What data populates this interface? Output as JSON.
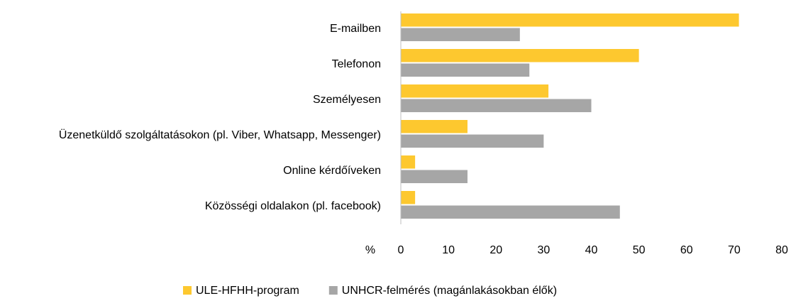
{
  "chart_data": {
    "type": "hbar",
    "categories": [
      "E-mailben",
      "Telefonon",
      "Személyesen",
      "Üzenetküldő szolgáltatásokon (pl. Viber, Whatsapp, Messenger)",
      "Online kérdőíveken",
      "Közösségi oldalakon (pl. facebook)"
    ],
    "series": [
      {
        "name": "ULE-HFHH-program",
        "color": "#fdc82f",
        "values": [
          71,
          50,
          31,
          14,
          3,
          3
        ]
      },
      {
        "name": "UNHCR-felmérés (magánlakásokban élők)",
        "color": "#a6a6a6",
        "values": [
          25,
          27,
          40,
          30,
          14,
          46
        ]
      }
    ],
    "xlabel": "%",
    "xlim": [
      0,
      80
    ],
    "xticks": [
      0,
      10,
      20,
      30,
      40,
      50,
      60,
      70,
      80
    ],
    "grid": false,
    "legend": "bottom"
  }
}
